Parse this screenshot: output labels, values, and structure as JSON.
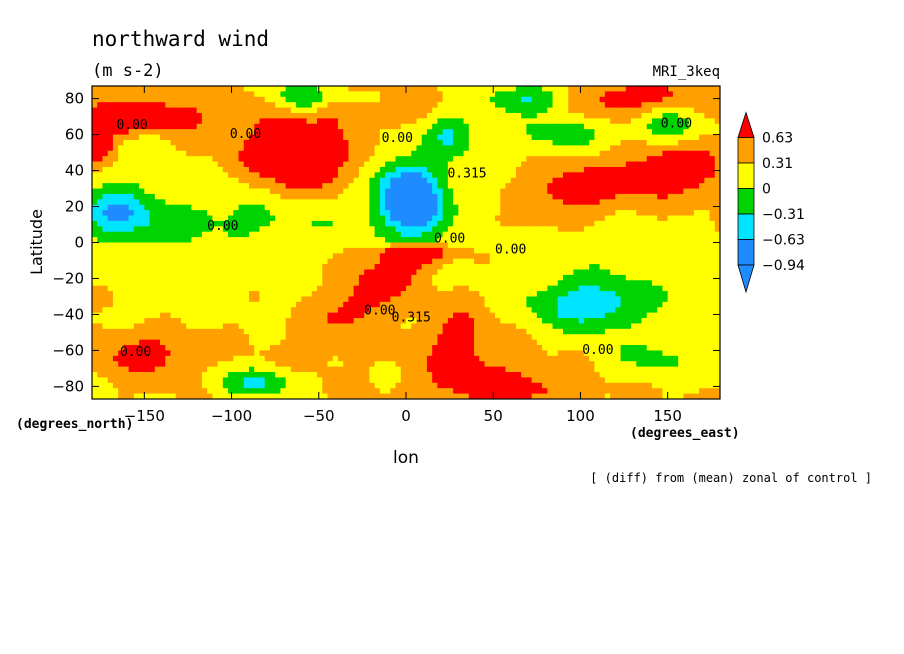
{
  "chart_data": {
    "type": "heatmap",
    "title": "northward wind",
    "units": "(m s-2)",
    "model_label": "MRI_3keq",
    "xlabel": "lon",
    "ylabel": "Latitude",
    "x_unit": "(degrees_east)",
    "y_unit": "(degrees_north)",
    "xlim": [
      -180,
      180
    ],
    "ylim": [
      -87,
      87
    ],
    "x_ticks": [
      -150,
      -100,
      -50,
      0,
      50,
      100,
      150
    ],
    "y_ticks": [
      80,
      60,
      40,
      20,
      0,
      -20,
      -40,
      -60,
      -80
    ],
    "x_tick_labels": [
      "−150",
      "−100",
      "−50",
      "0",
      "50",
      "100",
      "150"
    ],
    "y_tick_labels": [
      "80",
      "60",
      "40",
      "20",
      "0",
      "−20",
      "−40",
      "−60",
      "−80"
    ],
    "caption": "[ (diff) from (mean) zonal of control ]",
    "colorbar": {
      "levels": [
        -0.94,
        -0.63,
        -0.31,
        0,
        0.31,
        0.63
      ],
      "labels": [
        "0.63",
        "0.31",
        "0",
        "−0.31",
        "−0.63",
        "−0.94"
      ],
      "colors": [
        "#1e8cff",
        "#00e5ff",
        "#00d400",
        "#ffff00",
        "#ffa000",
        "#ff0000"
      ]
    },
    "contour_labels": [
      {
        "text": "0.00",
        "lon": -157,
        "lat": 63
      },
      {
        "text": "0.00",
        "lon": -92,
        "lat": 58
      },
      {
        "text": "0.00",
        "lon": -5,
        "lat": 56
      },
      {
        "text": "0.315",
        "lon": 35,
        "lat": 36
      },
      {
        "text": "0.00",
        "lon": -105,
        "lat": 7
      },
      {
        "text": "0.00",
        "lon": 25,
        "lat": 0
      },
      {
        "text": "0.00",
        "lon": 60,
        "lat": -6
      },
      {
        "text": "0.00",
        "lon": 155,
        "lat": 64
      },
      {
        "text": "0.00",
        "lon": -15,
        "lat": -40
      },
      {
        "text": "0.315",
        "lon": 3,
        "lat": -44
      },
      {
        "text": "0.00",
        "lon": -155,
        "lat": -63
      },
      {
        "text": "0.00",
        "lon": 110,
        "lat": -62
      }
    ],
    "anomalies": [
      {
        "lon": -180,
        "lat": 12,
        "sx": 240,
        "sy": 12,
        "v": -0.22
      },
      {
        "lon": -40,
        "lat": 25,
        "sx": 180,
        "sy": 30,
        "v": -0.12
      },
      {
        "lon": 180,
        "lat": -30,
        "sx": 200,
        "sy": 18,
        "v": -0.16
      },
      {
        "lon": -140,
        "lat": -15,
        "sx": 30,
        "sy": 28,
        "v": -0.18
      },
      {
        "lon": 120,
        "lat": -5,
        "sx": 60,
        "sy": 20,
        "v": -0.12
      },
      {
        "lon": -92,
        "lat": -5,
        "sx": 30,
        "sy": 22,
        "v": -0.1
      },
      {
        "lon": -170,
        "lat": 68,
        "sx": 36,
        "sy": 12,
        "v": 0.5
      },
      {
        "lon": -135,
        "lat": 70,
        "sx": 25,
        "sy": 10,
        "v": 0.38
      },
      {
        "lon": -62,
        "lat": 45,
        "sx": 36,
        "sy": 18,
        "v": 0.8
      },
      {
        "lon": -75,
        "lat": 62,
        "sx": 22,
        "sy": 10,
        "v": 0.18
      },
      {
        "lon": -40,
        "lat": 75,
        "sx": 45,
        "sy": 10,
        "v": 0.32
      },
      {
        "lon": 95,
        "lat": 28,
        "sx": 30,
        "sy": 16,
        "v": 0.55
      },
      {
        "lon": 150,
        "lat": 40,
        "sx": 32,
        "sy": 18,
        "v": 0.55
      },
      {
        "lon": 162,
        "lat": 42,
        "sx": 12,
        "sy": 8,
        "v": 0.45
      },
      {
        "lon": 132,
        "lat": 80,
        "sx": 45,
        "sy": 10,
        "v": 0.5
      },
      {
        "lon": 30,
        "lat": -55,
        "sx": 22,
        "sy": 25,
        "v": 0.45
      },
      {
        "lon": 60,
        "lat": -80,
        "sx": 45,
        "sy": 12,
        "v": 0.42
      },
      {
        "lon": -150,
        "lat": -62,
        "sx": 25,
        "sy": 12,
        "v": 0.5
      },
      {
        "lon": -178,
        "lat": 52,
        "sx": 8,
        "sy": 6,
        "v": 0.9
      },
      {
        "lon": -165,
        "lat": 18,
        "sx": 20,
        "sy": 14,
        "v": -0.75
      },
      {
        "lon": -148,
        "lat": 55,
        "sx": 15,
        "sy": 8,
        "v": -0.3
      },
      {
        "lon": -60,
        "lat": 80,
        "sx": 18,
        "sy": 8,
        "v": -0.75
      },
      {
        "lon": -25,
        "lat": 80,
        "sx": 12,
        "sy": 6,
        "v": -0.35
      },
      {
        "lon": 25,
        "lat": 60,
        "sx": 15,
        "sy": 12,
        "v": -0.6
      },
      {
        "lon": 5,
        "lat": 28,
        "sx": 18,
        "sy": 18,
        "v": -0.9
      },
      {
        "lon": 8,
        "lat": 12,
        "sx": 16,
        "sy": 12,
        "v": -0.4
      },
      {
        "lon": 70,
        "lat": 80,
        "sx": 25,
        "sy": 8,
        "v": -0.7
      },
      {
        "lon": 90,
        "lat": 60,
        "sx": 30,
        "sy": 10,
        "v": -0.45
      },
      {
        "lon": 150,
        "lat": 65,
        "sx": 18,
        "sy": 12,
        "v": -0.6
      },
      {
        "lon": 105,
        "lat": -35,
        "sx": 30,
        "sy": 14,
        "v": -0.75
      },
      {
        "lon": -85,
        "lat": -78,
        "sx": 20,
        "sy": 8,
        "v": -0.7
      },
      {
        "lon": 140,
        "lat": -65,
        "sx": 30,
        "sy": 12,
        "v": -0.35
      },
      {
        "lon": 5,
        "lat": -5,
        "sx": 22,
        "sy": 3.5,
        "v": 0.3
      },
      {
        "lon": 5,
        "lat": 2,
        "sx": 20,
        "sy": 3.5,
        "v": -0.3
      },
      {
        "lon": 60,
        "lat": 12,
        "sx": 30,
        "sy": 6,
        "v": 0.15
      },
      {
        "lon": -100,
        "lat": 30,
        "sx": 25,
        "sy": 15,
        "v": -0.15
      }
    ]
  }
}
